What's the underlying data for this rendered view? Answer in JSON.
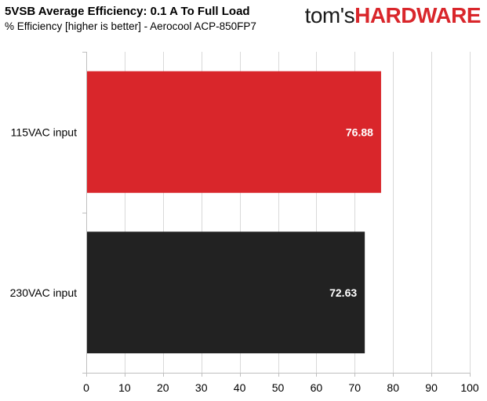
{
  "header": {
    "title": "5VSB Average Efficiency: 0.1 A To Full Load",
    "subtitle": "% Efficiency [higher is better] - Aerocool ACP-850FP7",
    "logo_toms": "tom's",
    "logo_hardware": "HARDWARE"
  },
  "chart_data": {
    "type": "bar",
    "orientation": "horizontal",
    "title": "5VSB Average Efficiency: 0.1 A To Full Load",
    "subtitle": "% Efficiency [higher is better] - Aerocool ACP-850FP7",
    "categories": [
      "115VAC input",
      "230VAC input"
    ],
    "values": [
      76.88,
      72.63
    ],
    "value_labels": [
      "76.88",
      "72.63"
    ],
    "colors": [
      "#d9262b",
      "#222222"
    ],
    "xlim": [
      0,
      100
    ],
    "xticks": [
      0,
      10,
      20,
      30,
      40,
      50,
      60,
      70,
      80,
      90,
      100
    ],
    "xtick_labels": [
      "0",
      "10",
      "20",
      "30",
      "40",
      "50",
      "60",
      "70",
      "80",
      "90",
      "100"
    ],
    "grid": "vertical",
    "grid_color": "#d9d9d9",
    "legend": "none"
  }
}
